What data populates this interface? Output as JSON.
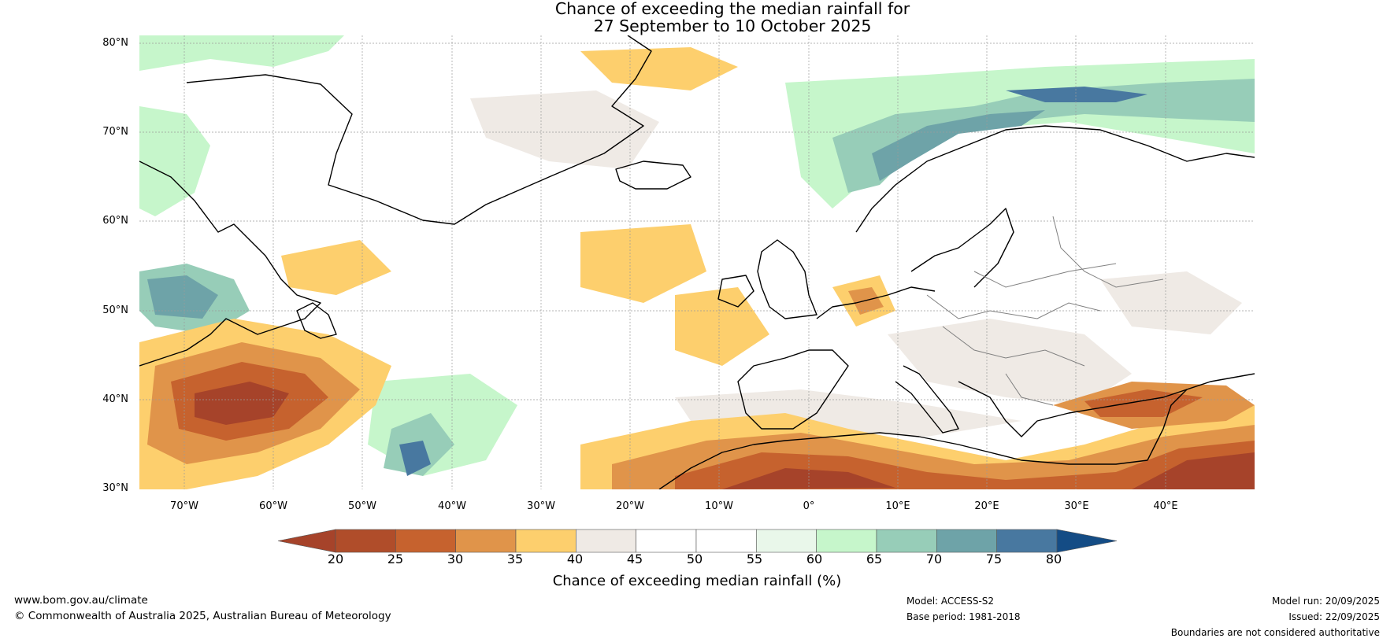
{
  "title": {
    "line1": "Chance of exceeding the median rainfall for",
    "line2": "27 September to 10 October 2025"
  },
  "map": {
    "lat_labels": [
      "80°N",
      "70°N",
      "60°N",
      "50°N",
      "40°N",
      "30°N"
    ],
    "lon_labels": [
      "70°W",
      "60°W",
      "50°W",
      "40°W",
      "30°W",
      "20°W",
      "10°W",
      "0°",
      "10°E",
      "20°E",
      "30°E",
      "40°E"
    ],
    "lat_range": [
      30,
      81
    ],
    "lon_range": [
      -75,
      50
    ]
  },
  "legend": {
    "ticks": [
      "20",
      "25",
      "30",
      "35",
      "40",
      "45",
      "50",
      "55",
      "60",
      "65",
      "70",
      "75",
      "80"
    ],
    "colors": [
      "#a6432a",
      "#b04d2a",
      "#c6622e",
      "#e0944a",
      "#fdcf6d",
      "#efeae5",
      "#ffffff",
      "#ffffff",
      "#e9f7ea",
      "#c6f6cb",
      "#97cdb8",
      "#6ea3a8",
      "#4878a0",
      "#144c85"
    ],
    "title": "Chance of exceeding median rainfall (%)"
  },
  "footer": {
    "website": "www.bom.gov.au/climate",
    "copyright": "© Commonwealth of Australia 2025, Australian Bureau of Meteorology",
    "model": "Model: ACCESS-S2",
    "base_period": "Base period: 1981-2018",
    "model_run": "Model run: 20/09/2025",
    "issued": "Issued: 22/09/2025",
    "disclaimer": "Boundaries are not considered authoritative"
  }
}
